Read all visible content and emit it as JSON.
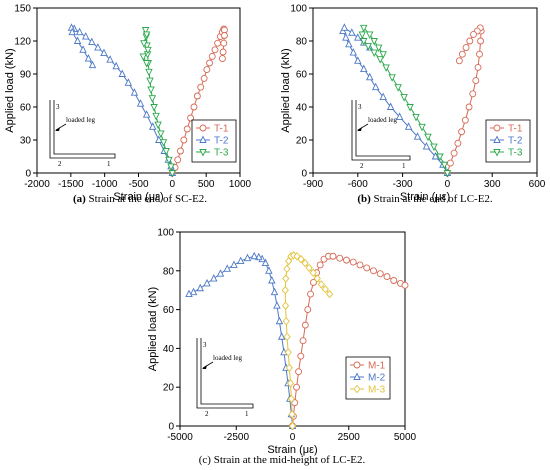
{
  "chart_data": [
    {
      "type": "line",
      "xlabel": "Strain (με)",
      "ylabel": "Applied load (kN)",
      "xlim": [
        -2000,
        1000
      ],
      "ylim": [
        0,
        150
      ],
      "xticks": [
        -2000,
        -1500,
        -1000,
        -500,
        0,
        500,
        1000
      ],
      "yticks": [
        0,
        30,
        60,
        90,
        120,
        150
      ],
      "caption_bold": "(a)",
      "caption_rest": " Strain at the end of SC-E2.",
      "inset": {
        "label_top": "3",
        "label_leg": "loaded leg",
        "label_bl": "2",
        "label_br": "1"
      },
      "series": [
        {
          "name": "T-1",
          "color": "#d66a55",
          "marker": "circle",
          "points": [
            [
              0,
              0
            ],
            [
              40,
              5
            ],
            [
              80,
              12
            ],
            [
              120,
              20
            ],
            [
              170,
              30
            ],
            [
              220,
              40
            ],
            [
              270,
              50
            ],
            [
              320,
              60
            ],
            [
              370,
              70
            ],
            [
              420,
              78
            ],
            [
              470,
              86
            ],
            [
              510,
              94
            ],
            [
              550,
              100
            ],
            [
              590,
              106
            ],
            [
              630,
              112
            ],
            [
              670,
              118
            ],
            [
              710,
              124
            ],
            [
              740,
              128
            ],
            [
              760,
              131
            ],
            [
              770,
              130
            ],
            [
              770,
              125
            ],
            [
              760,
              118
            ],
            [
              750,
              110
            ],
            [
              740,
              104
            ]
          ]
        },
        {
          "name": "T-2",
          "color": "#4c78c8",
          "marker": "triangle-up",
          "points": [
            [
              0,
              0
            ],
            [
              -20,
              6
            ],
            [
              -60,
              12
            ],
            [
              -120,
              20
            ],
            [
              -200,
              30
            ],
            [
              -290,
              42
            ],
            [
              -380,
              53
            ],
            [
              -470,
              63
            ],
            [
              -560,
              73
            ],
            [
              -650,
              82
            ],
            [
              -740,
              90
            ],
            [
              -830,
              97
            ],
            [
              -920,
              103
            ],
            [
              -1010,
              109
            ],
            [
              -1100,
              114
            ],
            [
              -1190,
              119
            ],
            [
              -1280,
              124
            ],
            [
              -1370,
              128
            ],
            [
              -1450,
              131
            ],
            [
              -1490,
              132
            ],
            [
              -1480,
              128
            ],
            [
              -1400,
              120
            ],
            [
              -1320,
              112
            ],
            [
              -1240,
              104
            ],
            [
              -1180,
              98
            ]
          ]
        },
        {
          "name": "T-3",
          "color": "#2aa84a",
          "marker": "triangle-down",
          "points": [
            [
              0,
              0
            ],
            [
              -20,
              6
            ],
            [
              -50,
              12
            ],
            [
              -90,
              20
            ],
            [
              -130,
              28
            ],
            [
              -170,
              36
            ],
            [
              -210,
              44
            ],
            [
              -240,
              52
            ],
            [
              -270,
              60
            ],
            [
              -295,
              68
            ],
            [
              -315,
              76
            ],
            [
              -330,
              84
            ],
            [
              -345,
              92
            ],
            [
              -355,
              100
            ],
            [
              -365,
              108
            ],
            [
              -375,
              116
            ],
            [
              -385,
              124
            ],
            [
              -395,
              130
            ],
            [
              -380,
              126
            ],
            [
              -420,
              118
            ],
            [
              -360,
              112
            ],
            [
              -430,
              106
            ],
            [
              -380,
              100
            ]
          ]
        }
      ]
    },
    {
      "type": "line",
      "xlabel": "Strain (με)",
      "ylabel": "Applied load (kN)",
      "xlim": [
        -900,
        600
      ],
      "ylim": [
        0,
        100
      ],
      "xticks": [
        -900,
        -600,
        -300,
        0,
        300,
        600
      ],
      "yticks": [
        0,
        20,
        40,
        60,
        80,
        100
      ],
      "caption_bold": "(b)",
      "caption_rest": " Strain at the end of LC-E2.",
      "inset": {
        "label_top": "3",
        "label_leg": "loaded leg",
        "label_bl": "2",
        "label_br": "1"
      },
      "series": [
        {
          "name": "T-1",
          "color": "#d66a55",
          "marker": "circle",
          "points": [
            [
              0,
              0
            ],
            [
              20,
              6
            ],
            [
              45,
              12
            ],
            [
              70,
              18
            ],
            [
              95,
              25
            ],
            [
              120,
              32
            ],
            [
              145,
              40
            ],
            [
              170,
              48
            ],
            [
              190,
              56
            ],
            [
              205,
              64
            ],
            [
              215,
              72
            ],
            [
              222,
              80
            ],
            [
              226,
              86
            ],
            [
              220,
              88
            ],
            [
              200,
              86
            ],
            [
              175,
              84
            ],
            [
              150,
              80
            ],
            [
              125,
              76
            ],
            [
              100,
              72
            ],
            [
              80,
              68
            ]
          ]
        },
        {
          "name": "T-2",
          "color": "#4c78c8",
          "marker": "triangle-up",
          "points": [
            [
              0,
              0
            ],
            [
              -30,
              5
            ],
            [
              -80,
              10
            ],
            [
              -140,
              16
            ],
            [
              -200,
              22
            ],
            [
              -260,
              28
            ],
            [
              -320,
              34
            ],
            [
              -380,
              40
            ],
            [
              -430,
              46
            ],
            [
              -480,
              52
            ],
            [
              -520,
              58
            ],
            [
              -560,
              63
            ],
            [
              -600,
              68
            ],
            [
              -630,
              73
            ],
            [
              -660,
              78
            ],
            [
              -680,
              82
            ],
            [
              -700,
              86
            ],
            [
              -690,
              88
            ],
            [
              -640,
              85
            ],
            [
              -600,
              82
            ],
            [
              -560,
              79
            ],
            [
              -520,
              76
            ]
          ]
        },
        {
          "name": "T-3",
          "color": "#2aa84a",
          "marker": "triangle-down",
          "points": [
            [
              0,
              0
            ],
            [
              -20,
              5
            ],
            [
              -50,
              10
            ],
            [
              -90,
              16
            ],
            [
              -130,
              22
            ],
            [
              -170,
              28
            ],
            [
              -210,
              34
            ],
            [
              -250,
              40
            ],
            [
              -290,
              46
            ],
            [
              -330,
              52
            ],
            [
              -370,
              58
            ],
            [
              -410,
              64
            ],
            [
              -450,
              69
            ],
            [
              -490,
              73
            ],
            [
              -530,
              77
            ],
            [
              -560,
              80
            ],
            [
              -570,
              84
            ],
            [
              -560,
              88
            ],
            [
              -520,
              84
            ],
            [
              -490,
              80
            ],
            [
              -460,
              76
            ],
            [
              -430,
              72
            ]
          ]
        }
      ]
    },
    {
      "type": "line",
      "xlabel": "Strain (με)",
      "ylabel": "Applied load (kN)",
      "xlim": [
        -5000,
        5000
      ],
      "ylim": [
        0,
        100
      ],
      "xticks": [
        -5000,
        -2500,
        0,
        2500,
        5000
      ],
      "yticks": [
        0,
        20,
        40,
        60,
        80,
        100
      ],
      "caption_bold": "",
      "caption_rest": "(c) Strain at the mid-height of LC-E2.",
      "inset": {
        "label_top": "3",
        "label_leg": "loaded leg",
        "label_bl": "2",
        "label_br": "1"
      },
      "series": [
        {
          "name": "M-1",
          "color": "#d66a55",
          "marker": "circle",
          "points": [
            [
              0,
              0
            ],
            [
              40,
              5
            ],
            [
              100,
              12
            ],
            [
              180,
              20
            ],
            [
              270,
              28
            ],
            [
              370,
              36
            ],
            [
              470,
              44
            ],
            [
              570,
              52
            ],
            [
              680,
              60
            ],
            [
              800,
              68
            ],
            [
              930,
              74
            ],
            [
              1070,
              79
            ],
            [
              1230,
              83
            ],
            [
              1400,
              86
            ],
            [
              1600,
              87.5
            ],
            [
              1800,
              87.5
            ],
            [
              2100,
              86.5
            ],
            [
              2400,
              85.5
            ],
            [
              2700,
              84.5
            ],
            [
              3000,
              83
            ],
            [
              3300,
              81.5
            ],
            [
              3600,
              80
            ],
            [
              3900,
              78.5
            ],
            [
              4200,
              77
            ],
            [
              4500,
              75
            ],
            [
              4800,
              73.5
            ],
            [
              5000,
              72.5
            ]
          ]
        },
        {
          "name": "M-2",
          "color": "#4c78c8",
          "marker": "triangle-up",
          "points": [
            [
              0,
              0
            ],
            [
              -50,
              6
            ],
            [
              -120,
              14
            ],
            [
              -200,
              22
            ],
            [
              -290,
              30
            ],
            [
              -380,
              38
            ],
            [
              -480,
              46
            ],
            [
              -580,
              54
            ],
            [
              -690,
              62
            ],
            [
              -800,
              69
            ],
            [
              -920,
              75
            ],
            [
              -1050,
              80
            ],
            [
              -1200,
              84
            ],
            [
              -1350,
              86
            ],
            [
              -1500,
              87
            ],
            [
              -1700,
              87.5
            ],
            [
              -2000,
              86.5
            ],
            [
              -2300,
              85
            ],
            [
              -2600,
              83
            ],
            [
              -2900,
              81
            ],
            [
              -3200,
              78.5
            ],
            [
              -3500,
              76
            ],
            [
              -3800,
              73.5
            ],
            [
              -4100,
              71
            ],
            [
              -4400,
              69
            ],
            [
              -4600,
              68
            ]
          ]
        },
        {
          "name": "M-3",
          "color": "#e2c23a",
          "marker": "diamond",
          "points": [
            [
              0,
              0
            ],
            [
              -20,
              6
            ],
            [
              -50,
              14
            ],
            [
              -90,
              22
            ],
            [
              -140,
              30
            ],
            [
              -190,
              38
            ],
            [
              -240,
              46
            ],
            [
              -280,
              54
            ],
            [
              -310,
              62
            ],
            [
              -320,
              70
            ],
            [
              -300,
              76
            ],
            [
              -250,
              81
            ],
            [
              -170,
              85
            ],
            [
              -70,
              87.5
            ],
            [
              50,
              88
            ],
            [
              200,
              87.5
            ],
            [
              380,
              86
            ],
            [
              560,
              84
            ],
            [
              740,
              81.5
            ],
            [
              920,
              79
            ],
            [
              1100,
              76
            ],
            [
              1280,
              73
            ],
            [
              1460,
              70.5
            ],
            [
              1650,
              68
            ]
          ]
        }
      ]
    }
  ]
}
